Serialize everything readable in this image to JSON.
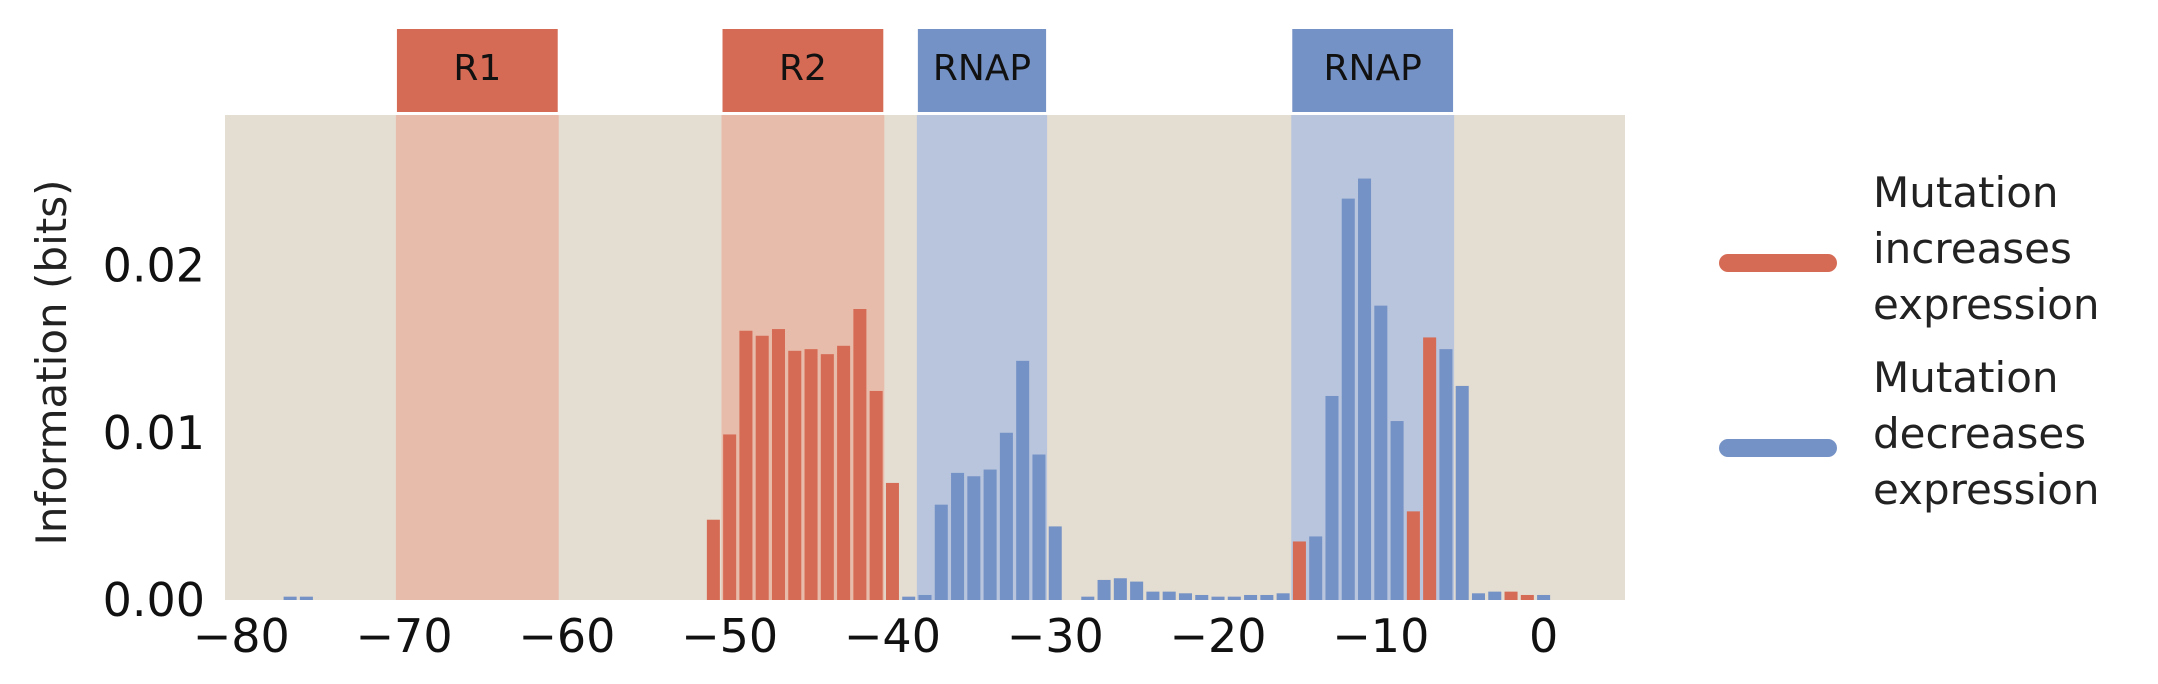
{
  "chart_data": {
    "type": "bar",
    "ylabel": "Information (bits)",
    "xlabel": "",
    "title": "",
    "xlim": [
      -81,
      5
    ],
    "ylim": [
      0,
      0.029
    ],
    "x_ticks": [
      -80,
      -70,
      -60,
      -50,
      -40,
      -30,
      -20,
      -10,
      0
    ],
    "x_tick_labels": [
      "−80",
      "−70",
      "−60",
      "−50",
      "−40",
      "−30",
      "−20",
      "−10",
      "0"
    ],
    "y_ticks": [
      0,
      0.01,
      0.02
    ],
    "y_tick_labels": [
      "0.00",
      "0.01",
      "0.02"
    ],
    "grid": false,
    "legend_placement": "right",
    "colors": {
      "increase": "#d66b55",
      "decrease": "#7592c6",
      "background": "#e4ddd1",
      "region_increase": "#e8bcab",
      "region_decrease": "#b8c5dd"
    },
    "regions": [
      {
        "label": "R1",
        "start": -70.5,
        "end": -60.5,
        "kind": "increase"
      },
      {
        "label": "R2",
        "start": -50.5,
        "end": -40.5,
        "kind": "increase"
      },
      {
        "label": "RNAP",
        "start": -38.5,
        "end": -30.5,
        "kind": "decrease"
      },
      {
        "label": "RNAP",
        "start": -15.5,
        "end": -5.5,
        "kind": "decrease"
      }
    ],
    "series": [
      {
        "name": "Mutation increases expression",
        "color": "#d66b55",
        "x": [
          -51,
          -50,
          -49,
          -48,
          -47,
          -46,
          -45,
          -44,
          -43,
          -42,
          -41,
          -40,
          -15,
          -8,
          -7,
          -2,
          -1
        ],
        "values": [
          0.0048,
          0.0099,
          0.0161,
          0.0158,
          0.0162,
          0.0149,
          0.015,
          0.0147,
          0.0152,
          0.0174,
          0.0125,
          0.007,
          0.0035,
          0.0053,
          0.0157,
          0.0005,
          0.0003
        ]
      },
      {
        "name": "Mutation decreases expression",
        "color": "#7592c6",
        "x": [
          -77,
          -76,
          -39,
          -38,
          -37,
          -36,
          -35,
          -34,
          -33,
          -32,
          -31,
          -30,
          -28,
          -27,
          -26,
          -25,
          -24,
          -23,
          -22,
          -21,
          -20,
          -19,
          -18,
          -17,
          -16,
          -14,
          -13,
          -12,
          -11,
          -10,
          -9,
          -6,
          -5,
          -4,
          -3,
          0
        ],
        "values": [
          0.0002,
          0.0002,
          0.0002,
          0.0003,
          0.0057,
          0.0076,
          0.0074,
          0.0078,
          0.01,
          0.0143,
          0.0087,
          0.0044,
          0.0002,
          0.0012,
          0.0013,
          0.0011,
          0.0005,
          0.0005,
          0.0004,
          0.0003,
          0.0002,
          0.0002,
          0.0003,
          0.0003,
          0.0004,
          0.0038,
          0.0122,
          0.024,
          0.0252,
          0.0176,
          0.0107,
          0.015,
          0.0128,
          0.0004,
          0.0005,
          0.0003
        ]
      }
    ]
  },
  "legend": {
    "items": [
      {
        "lines": [
          "Mutation",
          "increases",
          "expression"
        ],
        "color": "#d66b55"
      },
      {
        "lines": [
          "Mutation",
          "decreases",
          "expression"
        ],
        "color": "#7592c6"
      }
    ]
  }
}
